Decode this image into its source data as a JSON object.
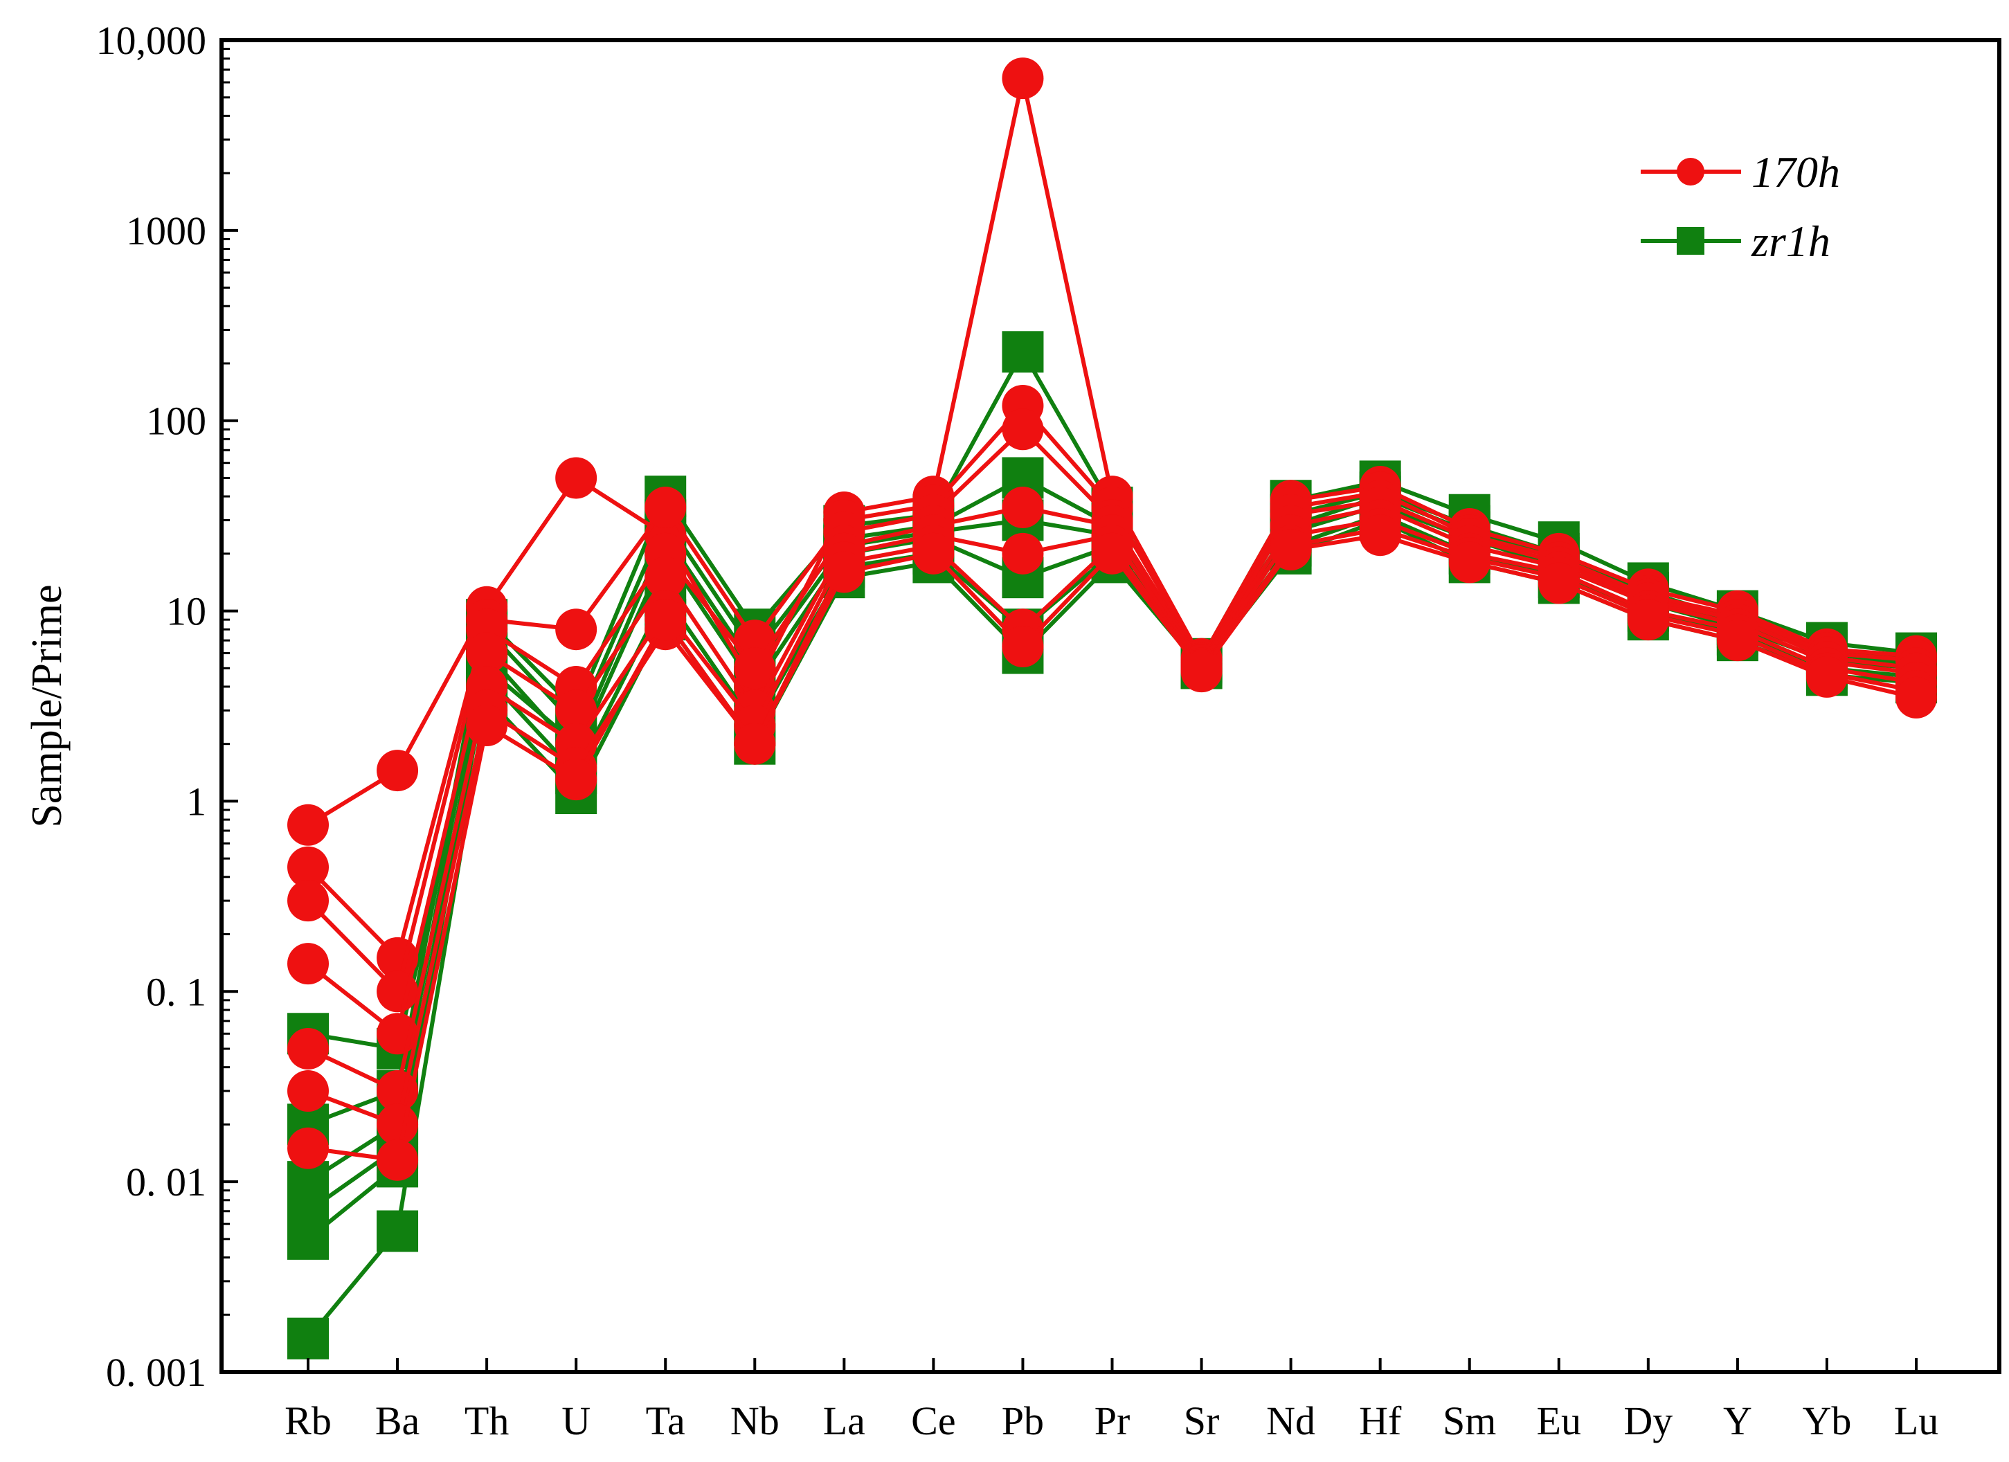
{
  "chart_data": {
    "type": "line",
    "ylabel": "Sample/Prime",
    "yscale": "log",
    "ylim": [
      0.001,
      10000
    ],
    "ytick_values": [
      0.001,
      0.01,
      0.1,
      1,
      10,
      100,
      1000,
      10000
    ],
    "ytick_labels": [
      "0. 001",
      "0. 01",
      "0. 1",
      "1",
      "10",
      "100",
      "1000",
      "10,000"
    ],
    "categories": [
      "Rb",
      "Ba",
      "Th",
      "U",
      "Ta",
      "Nb",
      "La",
      "Ce",
      "Pb",
      "Pr",
      "Sr",
      "Nd",
      "Hf",
      "Sm",
      "Eu",
      "Dy",
      "Y",
      "Yb",
      "Lu"
    ],
    "grid": false,
    "legend_position": "top-right",
    "colors": {
      "170h": "#ee1111",
      "zr1h": "#108010"
    },
    "series": [
      {
        "name": "zr1h",
        "group": "zr1h",
        "values": [
          0.0015,
          0.0055,
          3.5,
          1.1,
          9,
          2,
          15,
          18,
          6,
          18,
          5,
          20,
          30,
          18,
          14,
          9,
          7,
          4.6,
          4.2
        ]
      },
      {
        "name": "zr1h",
        "group": "zr1h",
        "values": [
          0.005,
          0.012,
          4.5,
          1.4,
          12,
          2.5,
          17,
          20,
          8,
          20,
          5,
          22,
          32,
          20,
          15,
          10,
          7.5,
          5,
          4.5
        ]
      },
      {
        "name": "zr1h",
        "group": "zr1h",
        "values": [
          0.007,
          0.015,
          6,
          1.8,
          20,
          4,
          20,
          24,
          15,
          22,
          5.2,
          26,
          36,
          24,
          17,
          11,
          8.2,
          5.5,
          5
        ]
      },
      {
        "name": "zr1h",
        "group": "zr1h",
        "values": [
          0.01,
          0.02,
          8,
          2.5,
          30,
          6,
          24,
          28,
          50,
          28,
          5.4,
          32,
          42,
          28,
          20,
          12.5,
          9,
          6.2,
          5.5
        ]
      },
      {
        "name": "zr1h",
        "group": "zr1h",
        "values": [
          0.02,
          0.03,
          9,
          3,
          40,
          8,
          28,
          32,
          230,
          35,
          5.6,
          38,
          48,
          32,
          23,
          14,
          10,
          6.8,
          6
        ]
      },
      {
        "name": "zr1h",
        "group": "zr1h",
        "values": [
          0.06,
          0.05,
          5,
          2,
          25,
          5,
          22,
          26,
          30,
          25,
          5.3,
          28,
          40,
          26,
          19,
          12,
          8.5,
          6,
          5.2
        ]
      },
      {
        "name": "170h",
        "group": "170h",
        "values": [
          0.75,
          1.45,
          10.5,
          50,
          25,
          4,
          33,
          40,
          6300,
          40,
          5.6,
          38,
          45,
          27,
          20,
          13,
          10,
          6.3,
          5.8
        ]
      },
      {
        "name": "170h",
        "group": "170h",
        "values": [
          0.45,
          0.15,
          9,
          8,
          35,
          7,
          30,
          36,
          120,
          35,
          5.5,
          35,
          42,
          25,
          19,
          12,
          9.5,
          6,
          5.5
        ]
      },
      {
        "name": "170h",
        "group": "170h",
        "values": [
          0.3,
          0.1,
          8,
          4,
          20,
          5,
          26,
          32,
          90,
          30,
          5.3,
          32,
          38,
          24,
          18,
          11.5,
          9,
          5.7,
          5
        ]
      },
      {
        "name": "170h",
        "group": "170h",
        "values": [
          0.14,
          0.06,
          6,
          3,
          15,
          3,
          22,
          28,
          35,
          28,
          5.2,
          28,
          35,
          22,
          17,
          11,
          8.5,
          5.4,
          4.7
        ]
      },
      {
        "name": "170h",
        "group": "170h",
        "values": [
          0.05,
          0.03,
          4,
          2,
          10,
          2.5,
          20,
          25,
          20,
          25,
          5,
          25,
          30,
          20,
          16,
          10,
          8,
          5,
          4.2
        ]
      },
      {
        "name": "170h",
        "group": "170h",
        "values": [
          0.03,
          0.02,
          3,
          1.5,
          8,
          2,
          18,
          22,
          8,
          22,
          4.9,
          22,
          27,
          19,
          15,
          9.5,
          7.5,
          4.7,
          3.8
        ]
      },
      {
        "name": "170h",
        "group": "170h",
        "values": [
          0.015,
          0.013,
          2.5,
          1.3,
          9,
          2,
          16,
          20,
          6.5,
          20,
          4.8,
          21,
          25,
          18,
          14,
          9,
          7,
          4.5,
          3.5
        ]
      }
    ]
  }
}
